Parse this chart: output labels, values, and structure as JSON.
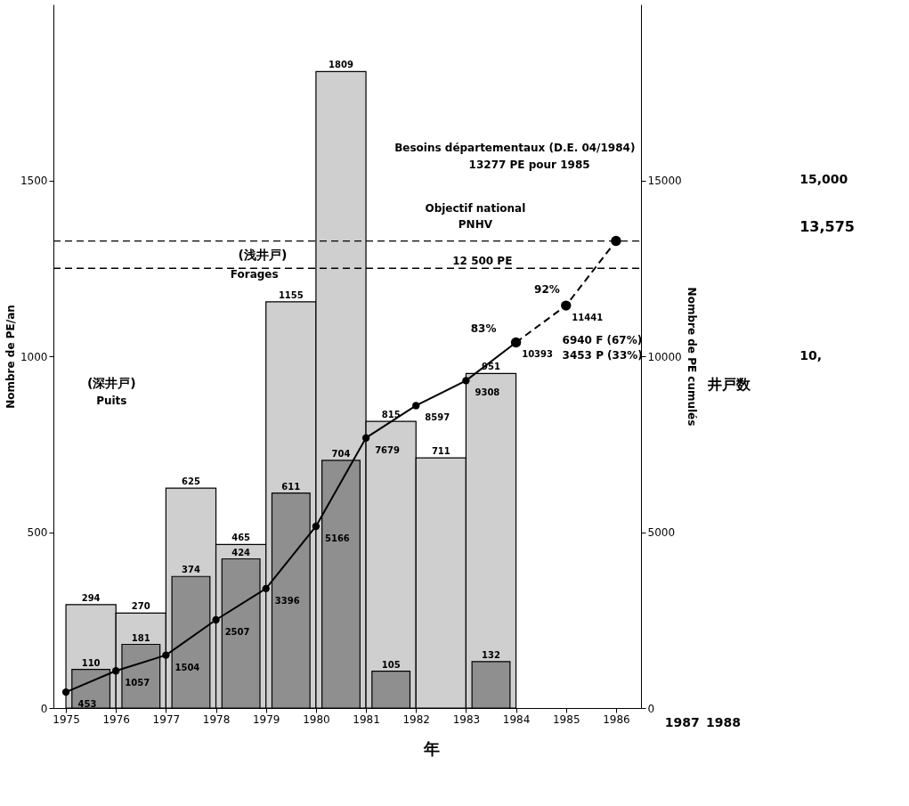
{
  "chart_data": {
    "type": "bar",
    "ylabel": "Nombre de PE/an",
    "y2label": "Nombre de PE cumulés",
    "xlim": [
      1974.75,
      1986.5
    ],
    "xticks": [
      1975,
      1976,
      1977,
      1978,
      1979,
      1980,
      1981,
      1982,
      1983,
      1984,
      1985,
      1986
    ],
    "ylim": [
      0,
      2000
    ],
    "yticks": [
      0,
      500,
      1000,
      1500
    ],
    "y2lim": [
      0,
      20000
    ],
    "y2ticks": [
      0,
      5000,
      10000,
      15000
    ],
    "grid": false,
    "series": [
      {
        "color": "#cfcfcf",
        "x": [
          1975,
          1976,
          1977,
          1978,
          1979,
          1980,
          1981,
          1982,
          1983
        ],
        "values": [
          294,
          270,
          625,
          465,
          1155,
          1809,
          815,
          711,
          951
        ],
        "value_labels": [
          "294",
          "270",
          "625",
          "465",
          "1155",
          "1809",
          "815",
          "711",
          "951"
        ]
      },
      {
        "color": "#8f8f8f",
        "x": [
          1975,
          1976,
          1977,
          1978,
          1979,
          1980,
          1981,
          1982,
          1983
        ],
        "values": [
          110,
          181,
          374,
          424,
          611,
          704,
          105,
          null,
          132
        ],
        "value_labels": [
          "110",
          "181",
          "374",
          "424",
          "611",
          "704",
          "105",
          null,
          "132"
        ]
      },
      {
        "type": "line",
        "axis": "y2",
        "color": "#000000",
        "marker": "circle",
        "line_style": "solid",
        "x": [
          1975,
          1976,
          1977,
          1978,
          1979,
          1980,
          1981,
          1982,
          1983,
          1984
        ],
        "values": [
          453,
          1057,
          1504,
          2507,
          3396,
          5166,
          7679,
          8597,
          9308,
          10393
        ],
        "value_labels": [
          "453",
          "1057",
          "1504",
          "2507",
          "3396",
          "5166",
          "7679",
          "8597",
          "9308",
          "10393"
        ]
      },
      {
        "type": "line",
        "axis": "y2",
        "color": "#000000",
        "marker": "circle",
        "line_style": "dashed",
        "x": [
          1984,
          1985,
          1986
        ],
        "values": [
          10393,
          11441,
          13277
        ],
        "value_labels": [
          null,
          "11441",
          null
        ]
      }
    ],
    "ref_lines": [
      {
        "axis": "y2",
        "value": 12500,
        "label": "12 500 PE",
        "line_style": "dashed",
        "color": "#000000"
      },
      {
        "axis": "y2",
        "value": 13277,
        "label": null,
        "line_style": "dashed",
        "color": "#000000"
      }
    ],
    "annotations": [
      "(深井戸)",
      "Puits",
      "(浅井戸)",
      "Forages",
      "Besoins départementaux (D.E. 04/1984)",
      "13277 PE pour 1985",
      "Objectif national",
      "PNHV",
      "92%",
      "83%",
      "6940 F (67%)",
      "3453 P (33%)",
      "年",
      "井戸数",
      "1987",
      "1988",
      "15,000",
      "13,575",
      "10,"
    ]
  }
}
